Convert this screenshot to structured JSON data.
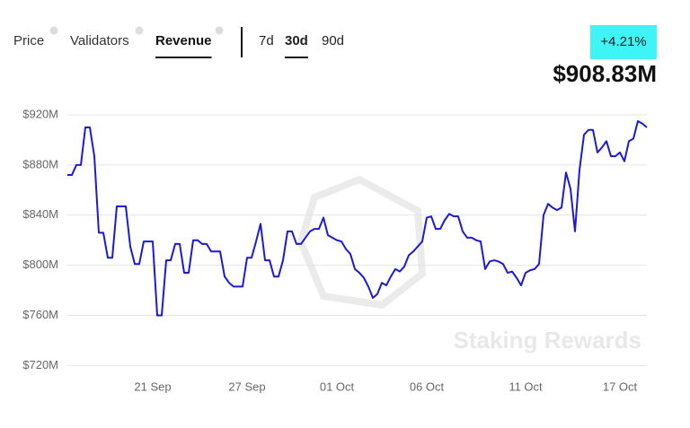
{
  "header": {
    "tabs": [
      {
        "label": "Price",
        "selected": false
      },
      {
        "label": "Validators",
        "selected": false
      },
      {
        "label": "Revenue",
        "selected": true
      }
    ],
    "periods": [
      {
        "label": "7d",
        "selected": false
      },
      {
        "label": "30d",
        "selected": true
      },
      {
        "label": "90d",
        "selected": false
      }
    ],
    "change": "+4.21%",
    "value": "$908.83M"
  },
  "chart_data": {
    "type": "line",
    "watermark": "Staking Rewards",
    "categories": [
      null,
      null,
      null,
      null,
      null,
      null,
      null,
      null,
      null,
      null,
      null,
      null,
      null,
      null,
      null,
      null,
      null,
      null,
      null,
      "21 Sep",
      null,
      null,
      null,
      null,
      null,
      null,
      null,
      null,
      null,
      null,
      null,
      null,
      null,
      null,
      null,
      null,
      null,
      null,
      null,
      null,
      "27 Sep",
      null,
      null,
      null,
      null,
      null,
      null,
      null,
      null,
      null,
      null,
      null,
      null,
      null,
      null,
      null,
      null,
      null,
      null,
      null,
      "01 Oct",
      null,
      null,
      null,
      null,
      null,
      null,
      null,
      null,
      null,
      null,
      null,
      null,
      null,
      null,
      null,
      null,
      null,
      null,
      null,
      "06 Oct",
      null,
      null,
      null,
      null,
      null,
      null,
      null,
      null,
      null,
      null,
      null,
      null,
      null,
      null,
      null,
      null,
      null,
      null,
      null,
      null,
      null,
      "11 Oct",
      null,
      null,
      null,
      null,
      null,
      null,
      null,
      null,
      null,
      null,
      null,
      null,
      null,
      null,
      null,
      null,
      null,
      null,
      null,
      null,
      "17 Oct",
      null,
      null,
      null,
      null,
      null,
      null
    ],
    "series": [
      {
        "name": "Revenue",
        "color": "#1a1ad6",
        "values": [
          872,
          872,
          880,
          880,
          910,
          910,
          887,
          826,
          826,
          806,
          806,
          847,
          847,
          847,
          815,
          801,
          801,
          819,
          819,
          819,
          760,
          760,
          804,
          804,
          817,
          817,
          794,
          794,
          820,
          820,
          817,
          817,
          811,
          811,
          811,
          791,
          786,
          783,
          783,
          783,
          806,
          806,
          819,
          833,
          804,
          804,
          791,
          791,
          804,
          827,
          827,
          817,
          817,
          822,
          827,
          829,
          829,
          838,
          824,
          822,
          820,
          819,
          813,
          809,
          797,
          794,
          790,
          783,
          774,
          777,
          786,
          784,
          791,
          797,
          795,
          799,
          808,
          811,
          815,
          819,
          838,
          839,
          829,
          829,
          836,
          841,
          839,
          839,
          827,
          822,
          822,
          820,
          819,
          797,
          803,
          804,
          803,
          801,
          794,
          795,
          790,
          784,
          794,
          796,
          797,
          801,
          840,
          849,
          846,
          844,
          846,
          874,
          861,
          827,
          876,
          904,
          908,
          908,
          890,
          894,
          899,
          887,
          887,
          890,
          883,
          899,
          901,
          915,
          913,
          910
        ]
      }
    ],
    "ylim": [
      711,
      920
    ],
    "yticks": [
      {
        "value": 720,
        "label": "$720M"
      },
      {
        "value": 760,
        "label": "$760M"
      },
      {
        "value": 800,
        "label": "$800M"
      },
      {
        "value": 840,
        "label": "$840M"
      },
      {
        "value": 880,
        "label": "$880M"
      },
      {
        "value": 920,
        "label": "$920M"
      }
    ],
    "grid": true
  }
}
